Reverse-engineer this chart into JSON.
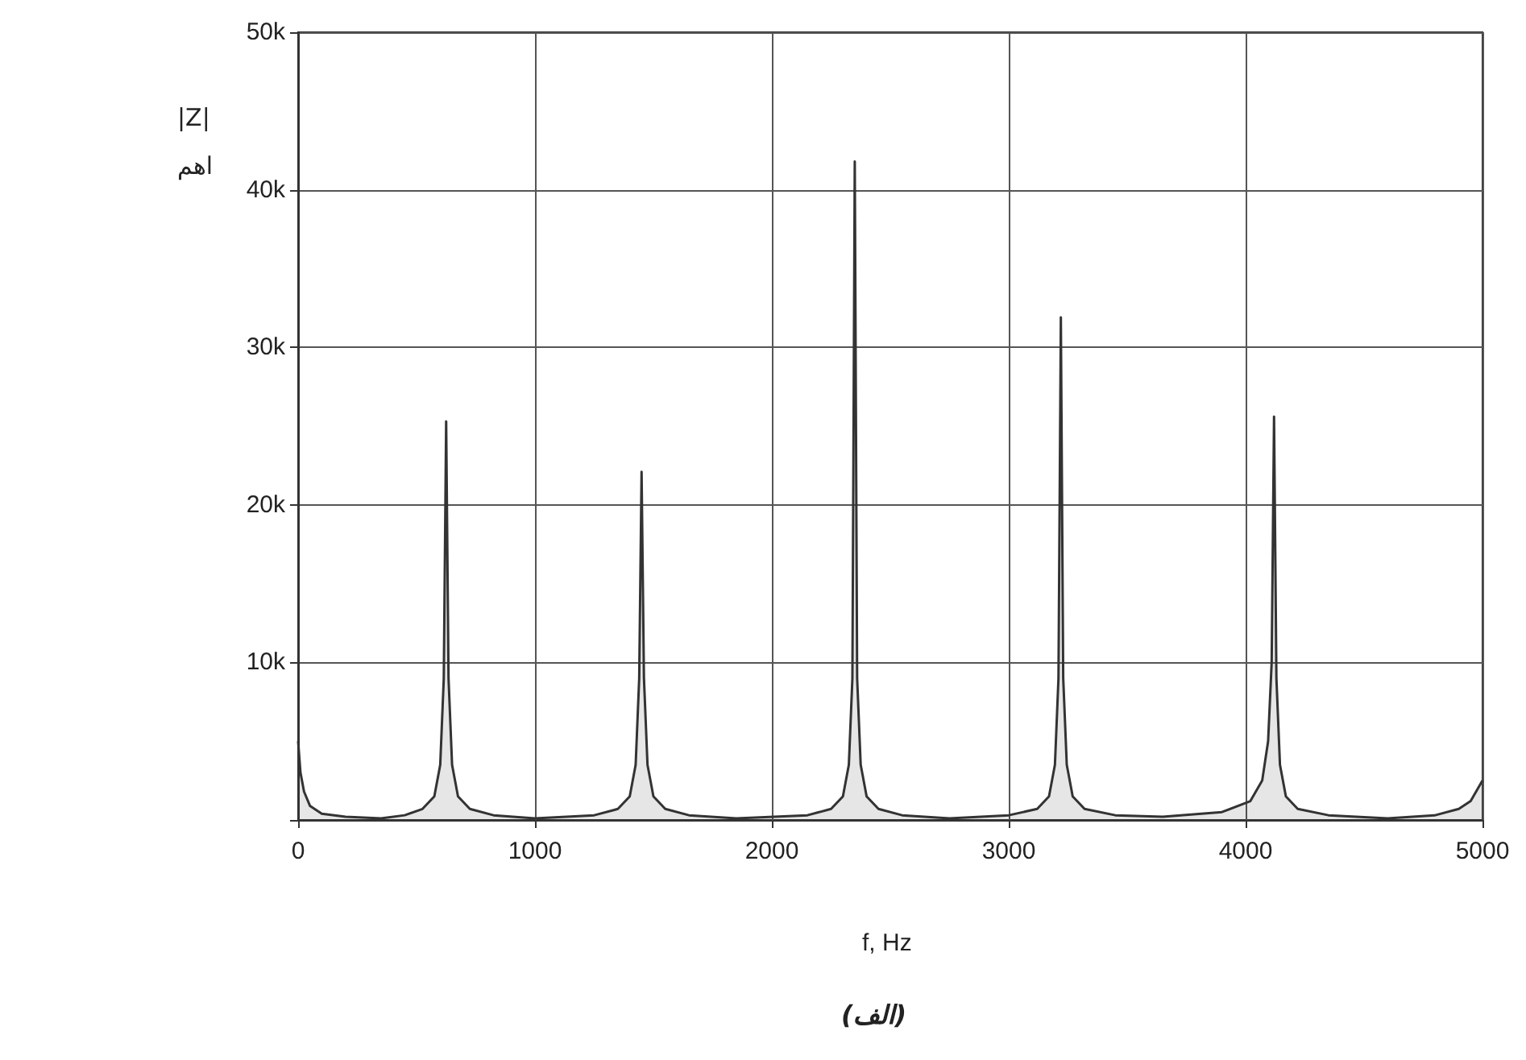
{
  "chart_data": {
    "type": "area",
    "xlabel": "f, Hz",
    "ylabel": "|Z|\nاهم",
    "annotations": [
      "(الف)"
    ],
    "color": "#333333",
    "grid": true,
    "x": [
      0,
      10,
      25,
      50,
      100,
      200,
      350,
      450,
      525,
      575,
      600,
      615,
      625,
      635,
      650,
      675,
      725,
      825,
      1000,
      1250,
      1350,
      1400,
      1425,
      1440,
      1450,
      1460,
      1475,
      1500,
      1550,
      1650,
      1850,
      2150,
      2250,
      2300,
      2325,
      2340,
      2350,
      2360,
      2375,
      2400,
      2450,
      2550,
      2750,
      3000,
      3120,
      3170,
      3195,
      3210,
      3220,
      3230,
      3245,
      3270,
      3320,
      3450,
      3650,
      3900,
      4020,
      4070,
      4095,
      4110,
      4120,
      4130,
      4145,
      4170,
      4220,
      4350,
      4600,
      4800,
      4900,
      4950,
      5000
    ],
    "values": [
      5000,
      3000,
      1800,
      900,
      400,
      200,
      100,
      300,
      700,
      1500,
      3500,
      9000,
      25300,
      9000,
      3500,
      1500,
      700,
      300,
      100,
      300,
      700,
      1500,
      3500,
      9000,
      22100,
      9000,
      3500,
      1500,
      700,
      300,
      100,
      300,
      700,
      1500,
      3500,
      9000,
      41800,
      9000,
      3500,
      1500,
      700,
      300,
      100,
      300,
      700,
      1500,
      3500,
      9000,
      31900,
      9000,
      3500,
      1500,
      700,
      300,
      200,
      500,
      1200,
      2500,
      5000,
      10000,
      25600,
      9000,
      3500,
      1500,
      700,
      300,
      100,
      300,
      700,
      1200,
      2500
    ],
    "xlim": [
      0,
      5000
    ],
    "xticks": [
      0,
      1000,
      2000,
      3000,
      4000,
      5000
    ],
    "ylim": [
      0,
      50000
    ],
    "yticks": [
      {
        "value": 0,
        "label": null
      },
      {
        "value": 10000,
        "label": "10k"
      },
      {
        "value": 20000,
        "label": "20k"
      },
      {
        "value": 30000,
        "label": "30k"
      },
      {
        "value": 40000,
        "label": "40k"
      },
      {
        "value": 50000,
        "label": "50k"
      }
    ]
  }
}
